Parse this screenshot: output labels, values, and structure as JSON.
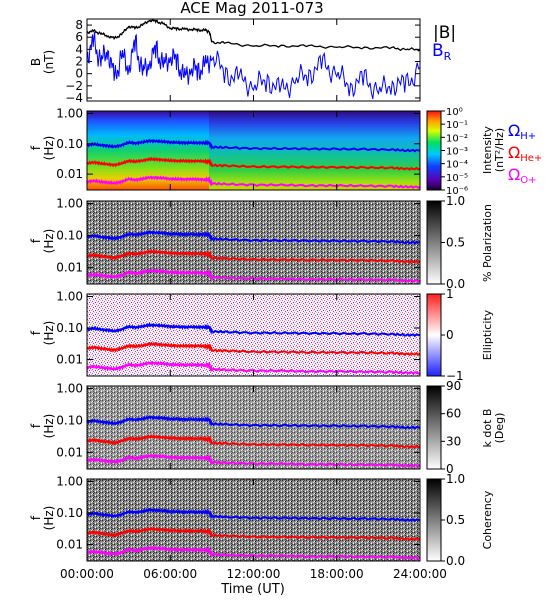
{
  "chart_data": {
    "title": "ACE Mag 2011-073",
    "x_axis": {
      "label": "Time (UT)",
      "ticks": [
        "00:00:00",
        "06:00:00",
        "12:00:00",
        "18:00:00",
        "24:00:00"
      ],
      "range_hours": [
        0,
        24
      ]
    },
    "panels": [
      {
        "type": "line",
        "ylabel_main": "B",
        "ylabel_unit": "(nT)",
        "yticks": [
          "8",
          "6",
          "4",
          "2",
          "0",
          "−2",
          "−4"
        ],
        "ylim": [
          -4.5,
          9
        ],
        "legend": [
          "|B|",
          "B"
        ],
        "legend_sub": [
          "",
          "R"
        ],
        "series": [
          {
            "name": "|B|",
            "color": "#000000",
            "x": [
              0,
              0.5,
              1,
              1.5,
              2,
              2.5,
              3,
              3.5,
              4,
              4.5,
              5,
              5.5,
              6,
              6.5,
              7,
              7.5,
              8,
              8.5,
              8.8,
              9,
              10,
              12,
              14,
              16,
              18,
              20,
              22,
              23,
              24
            ],
            "y": [
              6.8,
              7.0,
              6.6,
              6.2,
              5.8,
              6.5,
              7.8,
              7.5,
              8.0,
              8.8,
              8.6,
              8.2,
              7.5,
              7.4,
              7.3,
              7.3,
              7.2,
              7.1,
              7.0,
              5.2,
              5.0,
              4.6,
              4.6,
              4.5,
              4.4,
              4.3,
              4.2,
              4.0,
              4.0
            ]
          },
          {
            "name": "B",
            "color": "#0000ff",
            "x": [
              0,
              0.5,
              1,
              1.5,
              2,
              2.5,
              3,
              3.5,
              4,
              4.5,
              5,
              5.5,
              6,
              6.5,
              7,
              7.5,
              8,
              8.5,
              9,
              10,
              11,
              12,
              13,
              14,
              15,
              16,
              17,
              18,
              19,
              20,
              21,
              22,
              23,
              24
            ],
            "y": [
              3,
              5,
              2,
              4,
              -1,
              3,
              1,
              5,
              0,
              2,
              4,
              1,
              3,
              2,
              -1,
              1,
              0.5,
              1,
              3,
              0,
              -1,
              -2,
              -1,
              -3,
              -1,
              0,
              1.5,
              0,
              -2,
              -1,
              -3,
              -1.5,
              -2,
              1
            ]
          }
        ]
      },
      {
        "type": "heatmap",
        "ylabel_main": "f",
        "ylabel_unit": "(Hz)",
        "yticks": [
          "1.00",
          "0.10",
          "0.01"
        ],
        "cbar_title": "Intensity",
        "cbar_title2": "(nT²/Hz)",
        "cbar_ticks": [
          "10⁰",
          "10⁻¹",
          "10⁻²",
          "10⁻³",
          "10⁻⁴",
          "10⁻⁵",
          "10⁻⁶"
        ],
        "legend": [
          "Ω",
          "Ω",
          "Ω"
        ],
        "legend_sub": [
          "H+",
          "He+",
          "O+"
        ]
      },
      {
        "type": "heatmap",
        "ylabel_main": "f",
        "ylabel_unit": "(Hz)",
        "yticks": [
          "1.00",
          "0.10",
          "0.01"
        ],
        "cbar_title": "% Polarization",
        "cbar_ticks": [
          "1.0",
          "0.5",
          "0.0"
        ]
      },
      {
        "type": "heatmap",
        "ylabel_main": "f",
        "ylabel_unit": "(Hz)",
        "yticks": [
          "1.00",
          "0.10",
          "0.01"
        ],
        "cbar_title": "Ellipticity",
        "cbar_ticks": [
          "1",
          "0",
          "−1"
        ]
      },
      {
        "type": "heatmap",
        "ylabel_main": "f",
        "ylabel_unit": "(Hz)",
        "yticks": [
          "1.00",
          "0.10",
          "0.01"
        ],
        "cbar_title": "k dot B",
        "cbar_title2": "(Deg)",
        "cbar_ticks": [
          "90",
          "60",
          "30",
          "0"
        ]
      },
      {
        "type": "heatmap",
        "ylabel_main": "f",
        "ylabel_unit": "(Hz)",
        "yticks": [
          "1.00",
          "0.10",
          "0.01"
        ],
        "cbar_title": "Coherency",
        "cbar_ticks": [
          "1.0",
          "0.5",
          "0.0"
        ]
      }
    ],
    "gyrofrequencies": {
      "x": [
        0,
        0.5,
        1,
        1.5,
        2,
        2.5,
        3,
        3.5,
        4,
        4.5,
        5,
        5.5,
        6,
        6.5,
        7,
        7.5,
        8,
        8.5,
        8.8,
        9,
        10,
        12,
        14,
        16,
        18,
        20,
        22,
        23,
        24
      ],
      "lines": [
        {
          "name": "Ω H+",
          "color": "#0000ff",
          "y": [
            0.09,
            0.098,
            0.09,
            0.085,
            0.08,
            0.09,
            0.11,
            0.105,
            0.112,
            0.125,
            0.122,
            0.118,
            0.112,
            0.11,
            0.108,
            0.108,
            0.108,
            0.106,
            0.105,
            0.078,
            0.075,
            0.07,
            0.07,
            0.068,
            0.067,
            0.066,
            0.064,
            0.06,
            0.06
          ]
        },
        {
          "name": "Ω He+",
          "color": "#ff0000",
          "y": [
            0.0225,
            0.0245,
            0.0225,
            0.021,
            0.02,
            0.0225,
            0.0275,
            0.026,
            0.028,
            0.031,
            0.0305,
            0.0295,
            0.028,
            0.0275,
            0.027,
            0.027,
            0.027,
            0.0265,
            0.026,
            0.0195,
            0.019,
            0.0175,
            0.0175,
            0.017,
            0.0168,
            0.0165,
            0.016,
            0.015,
            0.015
          ]
        },
        {
          "name": "Ω O+",
          "color": "#ff00ff",
          "y": [
            0.0056,
            0.006,
            0.0056,
            0.0053,
            0.005,
            0.0056,
            0.0069,
            0.0065,
            0.007,
            0.0078,
            0.0076,
            0.0074,
            0.007,
            0.0069,
            0.0068,
            0.0068,
            0.0068,
            0.0066,
            0.0065,
            0.0049,
            0.0047,
            0.0044,
            0.0044,
            0.0042,
            0.0042,
            0.0041,
            0.004,
            0.0038,
            0.0038
          ]
        }
      ]
    }
  }
}
